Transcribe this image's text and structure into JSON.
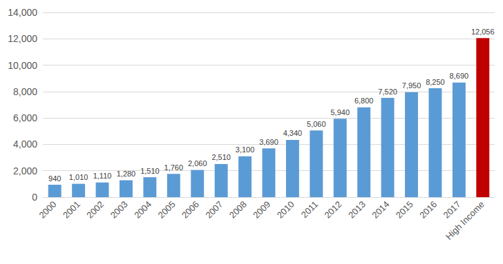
{
  "chart_data": {
    "type": "bar",
    "categories": [
      "2000",
      "2001",
      "2002",
      "2003",
      "2004",
      "2005",
      "2006",
      "2007",
      "2008",
      "2009",
      "2010",
      "2011",
      "2012",
      "2013",
      "2014",
      "2015",
      "2016",
      "2017",
      "High Income"
    ],
    "values": [
      940,
      1010,
      1110,
      1280,
      1510,
      1760,
      2060,
      2510,
      3100,
      3690,
      4340,
      5060,
      5940,
      6800,
      7520,
      7950,
      8250,
      8690,
      12056
    ],
    "value_labels": [
      "940",
      "1,010",
      "1,110",
      "1,280",
      "1,510",
      "1,760",
      "2,060",
      "2,510",
      "3,100",
      "3,690",
      "4,340",
      "5,060",
      "5,940",
      "6,800",
      "7,520",
      "7,950",
      "8,250",
      "8,690",
      "12,056"
    ],
    "colors": [
      "#5b9bd5",
      "#5b9bd5",
      "#5b9bd5",
      "#5b9bd5",
      "#5b9bd5",
      "#5b9bd5",
      "#5b9bd5",
      "#5b9bd5",
      "#5b9bd5",
      "#5b9bd5",
      "#5b9bd5",
      "#5b9bd5",
      "#5b9bd5",
      "#5b9bd5",
      "#5b9bd5",
      "#5b9bd5",
      "#5b9bd5",
      "#5b9bd5",
      "#c00000"
    ],
    "ylim": [
      0,
      14000
    ],
    "yticks": [
      0,
      {
        "value": 2000,
        "label": "2,000"
      },
      {
        "value": 4000,
        "label": "4,000"
      },
      {
        "value": 6000,
        "label": "6,000"
      },
      {
        "value": 8000,
        "label": "8,000"
      },
      {
        "value": 10000,
        "label": "10,000"
      },
      {
        "value": 12000,
        "label": "12,000"
      },
      {
        "value": 14000,
        "label": "14,000"
      }
    ],
    "grid": true,
    "data_labels": true
  }
}
